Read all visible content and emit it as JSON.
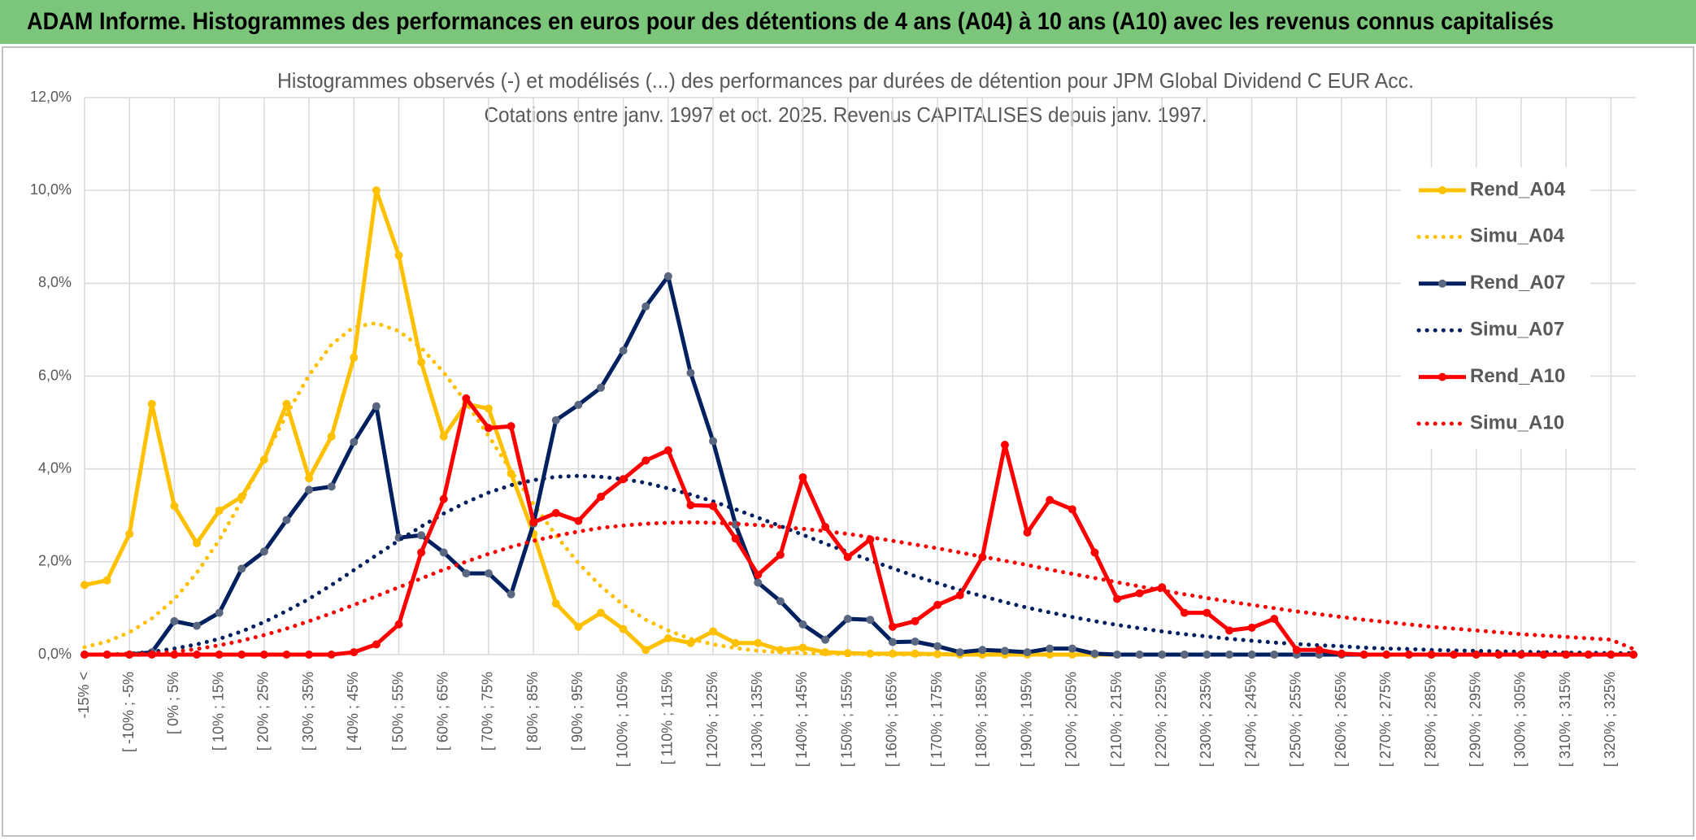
{
  "header": {
    "title": "ADAM Informe. Histogrammes des performances en euros pour des détentions de 4 ans (A04) à 10 ans (A10) avec les revenus connus capitalisés"
  },
  "chart_data": {
    "type": "line",
    "title": "Histogrammes observés (-) et modélisés (...) des performances par durées de détention pour JPM Global Dividend C EUR Acc.",
    "subtitle": "Cotations entre janv. 1997 et oct. 2025. Revenus CAPITALISES depuis janv. 1997.",
    "categories": [
      "-15% <",
      null,
      "[ -10% ; -5%",
      null,
      "[ 0% ; 5%",
      null,
      "[ 10% ; 15%",
      null,
      "[ 20% ; 25%",
      null,
      "[ 30% ; 35%",
      null,
      "[ 40% ; 45%",
      null,
      "[ 50% ; 55%",
      null,
      "[ 60% ; 65%",
      null,
      "[ 70% ; 75%",
      null,
      "[ 80% ; 85%",
      null,
      "[ 90% ; 95%",
      null,
      "[ 100% ; 105%",
      null,
      "[ 110% ; 115%",
      null,
      "[ 120% ; 125%",
      null,
      "[ 130% ; 135%",
      null,
      "[ 140% ; 145%",
      null,
      "[ 150% ; 155%",
      null,
      "[ 160% ; 165%",
      null,
      "[ 170% ; 175%",
      null,
      "[ 180% ; 185%",
      null,
      "[ 190% ; 195%",
      null,
      "[ 200% ; 205%",
      null,
      "[ 210% ; 215%",
      null,
      "[ 220% ; 225%",
      null,
      "[ 230% ; 235%",
      null,
      "[ 240% ; 245%",
      null,
      "[ 250% ; 255%",
      null,
      "[ 260% ; 265%",
      null,
      "[ 270% ; 275%",
      null,
      "[ 280% ; 285%",
      null,
      "[ 290% ; 295%",
      null,
      "[ 300% ; 305%",
      null,
      "[ 310% ; 315%",
      null,
      "[ 320% ; 325%",
      null
    ],
    "ylim": [
      0,
      12
    ],
    "yticks": [
      {
        "value": 0,
        "label": "0,0%"
      },
      {
        "value": 2,
        "label": "2,0%"
      },
      {
        "value": 4,
        "label": "4,0%"
      },
      {
        "value": 6,
        "label": "6,0%"
      },
      {
        "value": 8,
        "label": "8,0%"
      },
      {
        "value": 10,
        "label": "10,0%"
      },
      {
        "value": 12,
        "label": "12,0%"
      }
    ],
    "grid": true,
    "legend": "right",
    "series": [
      {
        "name": "Rend_A04",
        "color": "#FFC000",
        "style": "solid",
        "marker_color": "#FFC000",
        "values": [
          1.5,
          1.6,
          2.6,
          5.4,
          3.2,
          2.4,
          3.1,
          3.4,
          4.2,
          5.4,
          3.8,
          4.7,
          6.4,
          10.0,
          8.6,
          6.3,
          4.7,
          5.4,
          5.3,
          3.9,
          2.6,
          1.1,
          0.6,
          0.9,
          0.55,
          0.1,
          0.35,
          0.25,
          0.5,
          0.25,
          0.25,
          0.1,
          0.15,
          0.05,
          0.03,
          0.02,
          0.02,
          0.02,
          0.01,
          0,
          0,
          0,
          0,
          0,
          0,
          0,
          0,
          0,
          0,
          0,
          0,
          0,
          0,
          0,
          0,
          0,
          0,
          0,
          0,
          0,
          0,
          0,
          0,
          0,
          0,
          0,
          0,
          0,
          0,
          0
        ]
      },
      {
        "name": "Simu_A04",
        "color": "#FFC000",
        "style": "dotted",
        "values": [
          0.16,
          0.28,
          0.48,
          0.78,
          1.19,
          1.76,
          2.47,
          3.32,
          4.24,
          5.17,
          6.02,
          6.68,
          7.06,
          7.14,
          6.97,
          6.61,
          6.08,
          5.43,
          4.71,
          3.96,
          3.24,
          2.57,
          1.97,
          1.47,
          1.07,
          0.75,
          0.52,
          0.34,
          0.22,
          0.14,
          0.08,
          0.05,
          0.03,
          0.02,
          0.01,
          0.01,
          0,
          0,
          0,
          0,
          0,
          0,
          0,
          0,
          0,
          0,
          0,
          0,
          0,
          0,
          0,
          0,
          0,
          0,
          0,
          0,
          0,
          0,
          0,
          0,
          0,
          0,
          0,
          0,
          0,
          0,
          0,
          0,
          0,
          0
        ]
      },
      {
        "name": "Rend_A07",
        "color": "#002060",
        "style": "solid",
        "marker_color": "#596780",
        "values": [
          0,
          0,
          0,
          0.05,
          0.72,
          0.62,
          0.9,
          1.85,
          2.22,
          2.9,
          3.55,
          3.62,
          4.58,
          5.35,
          2.52,
          2.57,
          2.2,
          1.75,
          1.75,
          1.3,
          2.82,
          5.05,
          5.38,
          5.75,
          6.55,
          7.5,
          8.15,
          6.07,
          4.6,
          2.8,
          1.55,
          1.15,
          0.65,
          0.32,
          0.77,
          0.75,
          0.27,
          0.28,
          0.18,
          0.05,
          0.1,
          0.08,
          0.05,
          0.13,
          0.13,
          0.02,
          0,
          0,
          0,
          0,
          0,
          0,
          0,
          0,
          0,
          0,
          0,
          0,
          0,
          0,
          0,
          0,
          0,
          0,
          0,
          0,
          0,
          0,
          0,
          0
        ]
      },
      {
        "name": "Simu_A07",
        "color": "#002060",
        "style": "dotted",
        "values": [
          0,
          0,
          0.02,
          0.06,
          0.13,
          0.22,
          0.34,
          0.5,
          0.7,
          0.94,
          1.2,
          1.5,
          1.82,
          2.14,
          2.46,
          2.76,
          3.04,
          3.28,
          3.49,
          3.65,
          3.76,
          3.83,
          3.85,
          3.83,
          3.78,
          3.7,
          3.58,
          3.45,
          3.3,
          3.13,
          2.95,
          2.77,
          2.58,
          2.39,
          2.21,
          2.03,
          1.86,
          1.69,
          1.54,
          1.39,
          1.26,
          1.13,
          1.01,
          0.91,
          0.81,
          0.72,
          0.64,
          0.57,
          0.5,
          0.44,
          0.39,
          0.34,
          0.3,
          0.26,
          0.23,
          0.2,
          0.18,
          0.15,
          0.13,
          0.12,
          0.1,
          0.09,
          0.08,
          0.07,
          0.06,
          0.05,
          0.04,
          0.04,
          0.03,
          0.03
        ]
      },
      {
        "name": "Rend_A10",
        "color": "#FF0000",
        "style": "solid",
        "marker_color": "#FF0000",
        "values": [
          0,
          0,
          0,
          0,
          0,
          0,
          0,
          0,
          0,
          0,
          0,
          0,
          0.05,
          0.22,
          0.65,
          2.2,
          3.35,
          5.52,
          4.88,
          4.92,
          2.85,
          3.05,
          2.88,
          3.4,
          3.78,
          4.18,
          4.4,
          3.22,
          3.2,
          2.5,
          1.72,
          2.15,
          3.82,
          2.75,
          2.1,
          2.48,
          0.6,
          0.72,
          1.07,
          1.28,
          2.1,
          4.52,
          2.63,
          3.33,
          3.13,
          2.2,
          1.2,
          1.32,
          1.45,
          0.9,
          0.9,
          0.52,
          0.58,
          0.77,
          0.1,
          0.1,
          0.02,
          0,
          0,
          0,
          0,
          0,
          0,
          0,
          0,
          0,
          0,
          0,
          0,
          0
        ]
      },
      {
        "name": "Simu_A10",
        "color": "#FF0000",
        "style": "dotted",
        "values": [
          0,
          0,
          0.01,
          0.03,
          0.06,
          0.12,
          0.2,
          0.3,
          0.42,
          0.56,
          0.72,
          0.89,
          1.07,
          1.26,
          1.45,
          1.64,
          1.83,
          2.0,
          2.17,
          2.32,
          2.45,
          2.56,
          2.65,
          2.73,
          2.78,
          2.82,
          2.84,
          2.85,
          2.84,
          2.82,
          2.79,
          2.75,
          2.71,
          2.66,
          2.6,
          2.53,
          2.45,
          2.37,
          2.29,
          2.2,
          2.11,
          2.02,
          1.93,
          1.83,
          1.74,
          1.65,
          1.56,
          1.47,
          1.38,
          1.3,
          1.22,
          1.14,
          1.07,
          1.0,
          0.93,
          0.87,
          0.81,
          0.75,
          0.7,
          0.65,
          0.6,
          0.56,
          0.52,
          0.48,
          0.44,
          0.41,
          0.38,
          0.35,
          0.32,
          0.12
        ]
      }
    ]
  }
}
